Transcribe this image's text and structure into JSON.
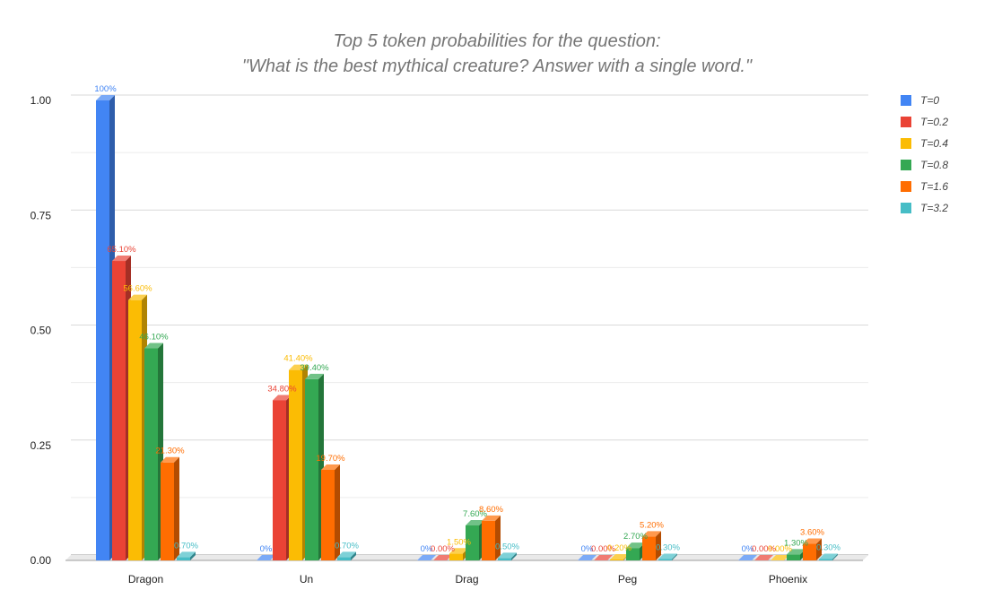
{
  "chart_data": {
    "type": "bar",
    "title_line1": "Top 5 token probabilities for the question:",
    "title_line2": "\"What is the best mythical creature? Answer with a single word.\"",
    "xlabel": "",
    "ylabel": "",
    "ylim": [
      0,
      1
    ],
    "yticks": [
      "0.00",
      "0.25",
      "0.50",
      "0.75",
      "1.00"
    ],
    "ytick_values": [
      0,
      0.25,
      0.5,
      0.75,
      1.0
    ],
    "grid": true,
    "legend_position": "right",
    "categories": [
      "Dragon",
      "Un",
      "Drag",
      "Peg",
      "Phoenix"
    ],
    "series": [
      {
        "name": "T=0",
        "color": "#4285f4",
        "values": [
          1.0,
          0,
          0,
          0,
          0
        ],
        "labels": [
          "100%",
          "0%",
          "0%",
          "0%",
          "0%"
        ]
      },
      {
        "name": "T=0.2",
        "color": "#ea4335",
        "values": [
          0.651,
          0.348,
          0,
          0,
          0
        ],
        "labels": [
          "65.10%",
          "34.80%",
          "0.00%",
          "0.00%",
          "0.00%"
        ]
      },
      {
        "name": "T=0.4",
        "color": "#fbbc04",
        "values": [
          0.566,
          0.414,
          0.015,
          0.002,
          0.0
        ],
        "labels": [
          "56.60%",
          "41.40%",
          "1.50%",
          "0.20%",
          "0.00%"
        ]
      },
      {
        "name": "T=0.8",
        "color": "#34a853",
        "values": [
          0.461,
          0.394,
          0.076,
          0.027,
          0.013
        ],
        "labels": [
          "46.10%",
          "39.40%",
          "7.60%",
          "2.70%",
          "1.30%"
        ]
      },
      {
        "name": "T=1.6",
        "color": "#ff6d01",
        "values": [
          0.213,
          0.197,
          0.086,
          0.052,
          0.036
        ],
        "labels": [
          "21.30%",
          "19.70%",
          "8.60%",
          "5.20%",
          "3.60%"
        ]
      },
      {
        "name": "T=3.2",
        "color": "#46bdc6",
        "values": [
          0.007,
          0.007,
          0.005,
          0.003,
          0.003
        ],
        "labels": [
          "0.70%",
          "0.70%",
          "0.50%",
          "0.30%",
          "0.30%"
        ]
      }
    ]
  }
}
